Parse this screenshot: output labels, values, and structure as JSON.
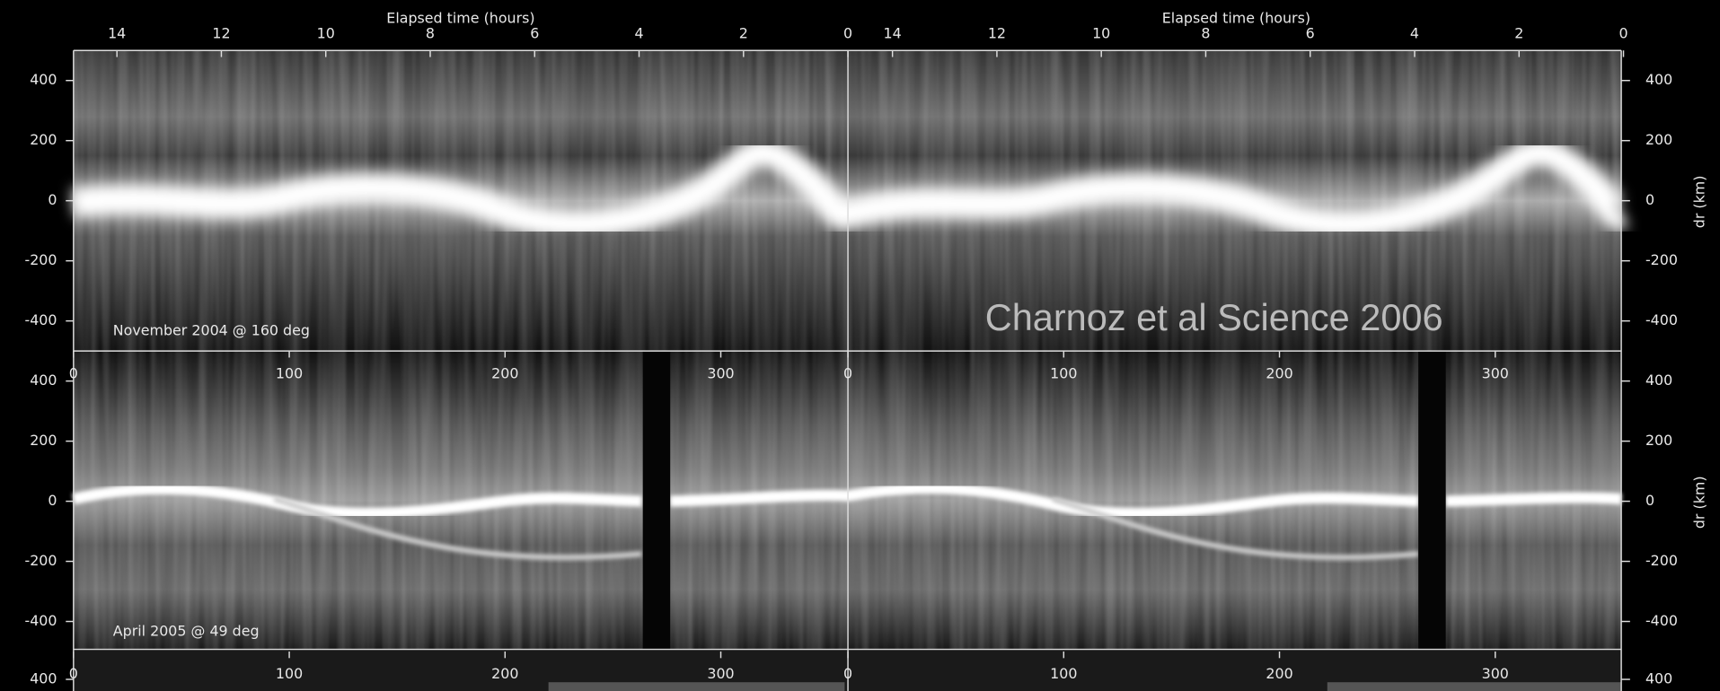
{
  "header": {
    "axis_title": "Elapsed time (hours)",
    "hour_ticks": [
      14,
      12,
      10,
      8,
      6,
      4,
      2,
      0
    ]
  },
  "panels": [
    {
      "label": "November 2004 @ 160 deg",
      "y_label": "dr (km)",
      "ylim": [
        -500,
        500
      ],
      "yticks": [
        400,
        200,
        0,
        -200,
        -400
      ],
      "longitude_ticks": [
        0,
        100,
        200,
        300
      ]
    },
    {
      "label": "April 2005 @ 49 deg",
      "y_label": "dr (km)",
      "ylim": [
        -500,
        500
      ],
      "yticks": [
        400,
        200,
        0,
        -200,
        -400
      ],
      "longitude_ticks": [
        0,
        100,
        200,
        300
      ]
    },
    {
      "ylim": [
        -500,
        500
      ],
      "yticks": [
        400
      ]
    }
  ],
  "credit": "Charnoz et al Science 2006"
}
